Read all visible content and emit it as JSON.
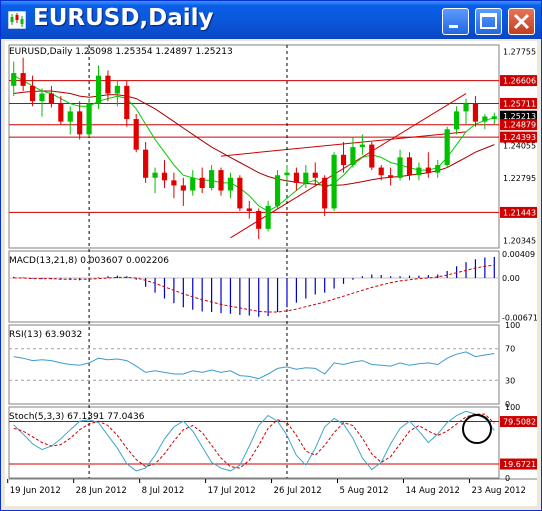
{
  "window": {
    "title": "EURUSD,Daily",
    "icon": "chart-app-icon",
    "buttons": [
      "minimize-icon",
      "maximize-icon",
      "close-icon"
    ]
  },
  "colors": {
    "bull": "#00c000",
    "bear": "#e00000",
    "level": "#cc0000",
    "channel": "#cc0000",
    "ma_fast": "#00cc00",
    "ma_slow": "#aa0000",
    "macd_hist": "#0000cc",
    "macd_signal": "#cc0000",
    "rsi": "#3d9bd0",
    "stoch_main": "#3fa7c9",
    "stoch_signal": "#cc0000"
  },
  "chart_data": [
    {
      "type": "candlestick",
      "header": "EURUSD,Daily  1.25098 1.25354 1.24897 1.25213",
      "ylim": [
        1.2005,
        1.28
      ],
      "yticks": [
        "1.27755",
        "1.26606",
        "1.25711",
        "1.25213",
        "1.24879",
        "1.24393",
        "1.24055",
        "1.22795",
        "1.21443",
        "1.20345"
      ],
      "level_lines": [
        1.26606,
        1.25711,
        1.24879,
        1.24393,
        1.21443
      ],
      "price_tags": [
        {
          "label": "1.26606",
          "value": 1.26606,
          "style": "level"
        },
        {
          "label": "1.25711",
          "value": 1.25711,
          "style": "level"
        },
        {
          "label": "1.25213",
          "value": 1.25213,
          "style": "bid"
        },
        {
          "label": "1.24879",
          "value": 1.24879,
          "style": "level"
        },
        {
          "label": "1.24393",
          "value": 1.24393,
          "style": "level"
        },
        {
          "label": "1.21443",
          "value": 1.21443,
          "style": "level"
        }
      ],
      "plain_ticks": [
        {
          "label": "1.27755",
          "value": 1.27755
        },
        {
          "label": "1.24055",
          "value": 1.24055
        },
        {
          "label": "1.22795",
          "value": 1.22795
        },
        {
          "label": "1.20345",
          "value": 1.20345
        }
      ],
      "channel": [
        {
          "from": [
            23,
            1.2045
          ],
          "to": [
            48,
            1.261
          ]
        },
        {
          "from": [
            22,
            1.2365
          ],
          "to": [
            48,
            1.246
          ]
        }
      ],
      "candles": [
        [
          1.264,
          1.2735,
          1.26,
          1.269
        ],
        [
          1.269,
          1.275,
          1.262,
          1.264
        ],
        [
          1.264,
          1.268,
          1.256,
          1.258
        ],
        [
          1.258,
          1.263,
          1.252,
          1.261
        ],
        [
          1.261,
          1.264,
          1.2555,
          1.257
        ],
        [
          1.257,
          1.26,
          1.249,
          1.25
        ],
        [
          1.25,
          1.256,
          1.245,
          1.254
        ],
        [
          1.254,
          1.258,
          1.243,
          1.245
        ],
        [
          1.245,
          1.259,
          1.244,
          1.257
        ],
        [
          1.257,
          1.272,
          1.255,
          1.268
        ],
        [
          1.268,
          1.27,
          1.258,
          1.261
        ],
        [
          1.261,
          1.266,
          1.256,
          1.264
        ],
        [
          1.264,
          1.266,
          1.248,
          1.251
        ],
        [
          1.251,
          1.253,
          1.238,
          1.239
        ],
        [
          1.239,
          1.242,
          1.226,
          1.228
        ],
        [
          1.228,
          1.232,
          1.222,
          1.23
        ],
        [
          1.23,
          1.235,
          1.224,
          1.227
        ],
        [
          1.227,
          1.23,
          1.22,
          1.225
        ],
        [
          1.225,
          1.228,
          1.217,
          1.223
        ],
        [
          1.223,
          1.231,
          1.221,
          1.228
        ],
        [
          1.228,
          1.232,
          1.222,
          1.224
        ],
        [
          1.224,
          1.233,
          1.223,
          1.231
        ],
        [
          1.231,
          1.232,
          1.221,
          1.223
        ],
        [
          1.223,
          1.23,
          1.22,
          1.228
        ],
        [
          1.228,
          1.229,
          1.215,
          1.216
        ],
        [
          1.216,
          1.219,
          1.212,
          1.215
        ],
        [
          1.215,
          1.216,
          1.204,
          1.208
        ],
        [
          1.208,
          1.219,
          1.207,
          1.217
        ],
        [
          1.217,
          1.231,
          1.216,
          1.229
        ],
        [
          1.229,
          1.233,
          1.226,
          1.23
        ],
        [
          1.23,
          1.232,
          1.223,
          1.226
        ],
        [
          1.226,
          1.233,
          1.224,
          1.23
        ],
        [
          1.23,
          1.234,
          1.225,
          1.228
        ],
        [
          1.228,
          1.229,
          1.213,
          1.216
        ],
        [
          1.216,
          1.238,
          1.215,
          1.237
        ],
        [
          1.237,
          1.242,
          1.23,
          1.233
        ],
        [
          1.233,
          1.244,
          1.232,
          1.24
        ],
        [
          1.24,
          1.245,
          1.237,
          1.241
        ],
        [
          1.241,
          1.242,
          1.231,
          1.232
        ],
        [
          1.232,
          1.233,
          1.227,
          1.229
        ],
        [
          1.229,
          1.232,
          1.225,
          1.228
        ],
        [
          1.228,
          1.239,
          1.227,
          1.236
        ],
        [
          1.236,
          1.238,
          1.227,
          1.229
        ],
        [
          1.229,
          1.234,
          1.227,
          1.232
        ],
        [
          1.232,
          1.238,
          1.228,
          1.23
        ],
        [
          1.23,
          1.235,
          1.228,
          1.233
        ],
        [
          1.233,
          1.248,
          1.232,
          1.247
        ],
        [
          1.247,
          1.256,
          1.245,
          1.254
        ],
        [
          1.254,
          1.259,
          1.249,
          1.257
        ],
        [
          1.257,
          1.26,
          1.248,
          1.25
        ],
        [
          1.25,
          1.253,
          1.247,
          1.252
        ],
        [
          1.251,
          1.2535,
          1.249,
          1.2521
        ]
      ],
      "ma_fast": [
        1.268,
        1.266,
        1.264,
        1.262,
        1.261,
        1.259,
        1.257,
        1.256,
        1.256,
        1.258,
        1.259,
        1.26,
        1.259,
        1.255,
        1.249,
        1.243,
        1.238,
        1.233,
        1.229,
        1.228,
        1.227,
        1.227,
        1.226,
        1.226,
        1.224,
        1.221,
        1.217,
        1.215,
        1.217,
        1.22,
        1.223,
        1.226,
        1.227,
        1.224,
        1.226,
        1.229,
        1.233,
        1.236,
        1.237,
        1.236,
        1.234,
        1.233,
        1.232,
        1.231,
        1.231,
        1.232,
        1.236,
        1.241,
        1.246,
        1.249,
        1.2505,
        1.2515
      ],
      "ma_slow": [
        1.261,
        1.2615,
        1.2618,
        1.262,
        1.262,
        1.2615,
        1.261,
        1.26,
        1.2595,
        1.26,
        1.2605,
        1.2605,
        1.26,
        1.259,
        1.257,
        1.255,
        1.2525,
        1.25,
        1.2475,
        1.245,
        1.2425,
        1.24,
        1.238,
        1.236,
        1.234,
        1.232,
        1.23,
        1.2285,
        1.2275,
        1.2268,
        1.2262,
        1.2258,
        1.2255,
        1.225,
        1.225,
        1.2252,
        1.2258,
        1.2265,
        1.2272,
        1.2278,
        1.2282,
        1.2285,
        1.229,
        1.2295,
        1.23,
        1.2308,
        1.232,
        1.234,
        1.236,
        1.238,
        1.2395,
        1.241
      ]
    },
    {
      "type": "bar",
      "title": "MACD(13,21,8) 0.003607 0.002206",
      "ylim": [
        -0.0075,
        0.0046
      ],
      "yticks": [
        "0.00409",
        "0.00",
        "-0.00671"
      ],
      "histogram": [
        0.0002,
        0.0001,
        -0.0001,
        -0.0002,
        -0.0002,
        -0.0002,
        -0.0003,
        -0.0004,
        -0.0003,
        0.0001,
        0.0003,
        0.0004,
        0.0003,
        -0.0003,
        -0.0015,
        -0.0025,
        -0.0035,
        -0.0043,
        -0.005,
        -0.0054,
        -0.0057,
        -0.0058,
        -0.006,
        -0.0061,
        -0.0063,
        -0.0064,
        -0.0066,
        -0.0065,
        -0.0058,
        -0.005,
        -0.0042,
        -0.0035,
        -0.0028,
        -0.0025,
        -0.0018,
        -0.001,
        -0.0003,
        0.0003,
        0.0006,
        0.0005,
        0.0003,
        0.0003,
        0.0004,
        0.0004,
        0.0005,
        0.0006,
        0.0012,
        0.002,
        0.0027,
        0.0032,
        0.0035,
        0.0036
      ],
      "signal": [
        0.0,
        0.0,
        -0.0001,
        -0.0001,
        -0.0001,
        -0.0002,
        -0.0002,
        -0.0002,
        -0.0002,
        -0.0001,
        0.0,
        0.0001,
        0.0001,
        0.0,
        -0.0004,
        -0.0009,
        -0.0015,
        -0.0021,
        -0.0027,
        -0.0032,
        -0.0037,
        -0.0041,
        -0.0045,
        -0.0048,
        -0.0051,
        -0.0054,
        -0.0057,
        -0.0058,
        -0.0058,
        -0.0056,
        -0.0053,
        -0.0049,
        -0.0045,
        -0.0041,
        -0.0036,
        -0.0031,
        -0.0026,
        -0.0021,
        -0.0016,
        -0.0012,
        -0.0008,
        -0.0005,
        -0.0003,
        -0.0001,
        0.0,
        0.0002,
        0.0005,
        0.0009,
        0.0013,
        0.0017,
        0.002,
        0.0022
      ]
    },
    {
      "type": "line",
      "title": "RSI(13) 63.9032",
      "ylim": [
        0,
        100
      ],
      "yticks": [
        "100",
        "70",
        "30",
        "0"
      ],
      "levels": [
        70,
        30
      ],
      "values": [
        60,
        58,
        55,
        56,
        55,
        52,
        50,
        49,
        52,
        58,
        56,
        57,
        55,
        48,
        40,
        42,
        40,
        38,
        38,
        42,
        40,
        43,
        40,
        42,
        36,
        35,
        32,
        38,
        45,
        47,
        44,
        46,
        45,
        38,
        52,
        50,
        53,
        55,
        50,
        49,
        48,
        52,
        49,
        51,
        52,
        50,
        58,
        63,
        66,
        60,
        62,
        63.9
      ]
    },
    {
      "type": "line",
      "title": "Stoch(5,3,3) 67.1391 77.0436",
      "ylim": [
        0,
        100
      ],
      "yticks": [
        "100",
        "0"
      ],
      "levels": [
        79.5082,
        19.6721
      ],
      "level_tags": [
        "79.5082",
        "19.6721"
      ],
      "main": [
        75,
        62,
        48,
        40,
        45,
        55,
        68,
        80,
        82,
        78,
        60,
        42,
        20,
        10,
        14,
        32,
        55,
        72,
        80,
        66,
        44,
        22,
        14,
        10,
        18,
        45,
        74,
        88,
        80,
        60,
        32,
        18,
        42,
        72,
        84,
        76,
        56,
        28,
        12,
        22,
        48,
        70,
        80,
        66,
        50,
        62,
        78,
        88,
        94,
        90,
        84,
        67
      ],
      "signal": [
        70,
        66,
        58,
        50,
        45,
        47,
        56,
        68,
        76,
        80,
        74,
        60,
        42,
        26,
        16,
        20,
        34,
        52,
        68,
        74,
        64,
        46,
        28,
        16,
        14,
        25,
        46,
        70,
        82,
        78,
        60,
        38,
        32,
        46,
        64,
        78,
        74,
        56,
        34,
        22,
        30,
        48,
        66,
        74,
        66,
        60,
        66,
        76,
        86,
        90,
        90,
        77
      ]
    }
  ],
  "x_axis": {
    "labels": [
      "19 Jun 2012",
      "28 Jun 2012",
      "8 Jul 2012",
      "17 Jul 2012",
      "26 Jul 2012",
      "5 Aug 2012",
      "14 Aug 2012",
      "23 Aug 2012"
    ],
    "label_bars": [
      0,
      7,
      14,
      21,
      28,
      35,
      42,
      49
    ],
    "vlines_at_bars": [
      8,
      29
    ]
  },
  "annotation": {
    "shape": "circle",
    "target": "stochastic-crossover"
  }
}
